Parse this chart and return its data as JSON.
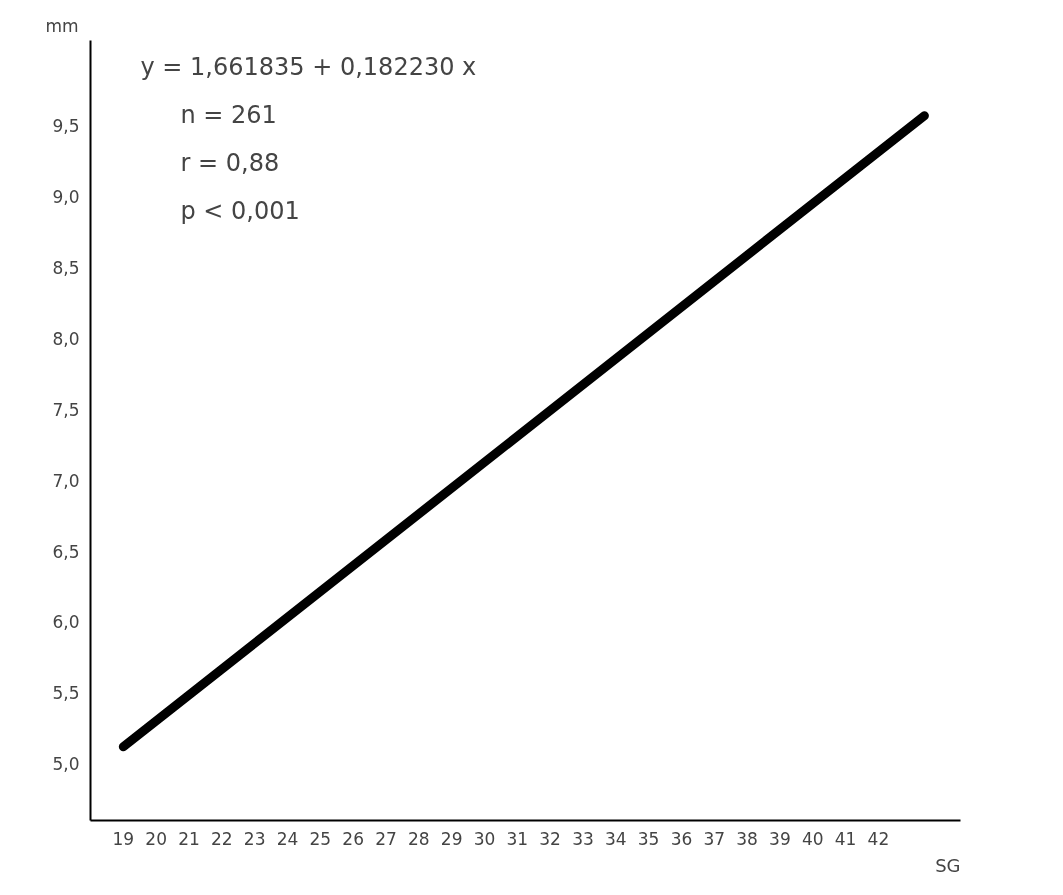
{
  "chart_data": {
    "type": "line",
    "xlabel": "SG",
    "ylabel": "mm",
    "x": [
      19,
      43.4
    ],
    "series": [
      {
        "color": "#000000",
        "values": [
          5.12,
          9.57
        ]
      }
    ],
    "xlim": [
      18,
      44.5
    ],
    "ylim": [
      4.6,
      10.1
    ],
    "xticks": [
      19,
      20,
      21,
      22,
      23,
      24,
      25,
      26,
      27,
      28,
      29,
      30,
      31,
      32,
      33,
      34,
      35,
      36,
      37,
      38,
      39,
      40,
      41,
      42
    ],
    "yticks": [
      {
        "value": 5,
        "label": "5,0"
      },
      {
        "value": 5.5,
        "label": "5,5"
      },
      {
        "value": 6,
        "label": "6,0"
      },
      {
        "value": 6.5,
        "label": "6,5"
      },
      {
        "value": 7,
        "label": "7,0"
      },
      {
        "value": 7.5,
        "label": "7,5"
      },
      {
        "value": 8,
        "label": "8,0"
      },
      {
        "value": 8.5,
        "label": "8,5"
      },
      {
        "value": 9,
        "label": "9,0"
      },
      {
        "value": 9.5,
        "label": "9,5"
      }
    ],
    "annotations": [
      "y = 1,661835 + 0,182230 x",
      "n = 261",
      "r = 0,88",
      "p < 0,001"
    ],
    "grid": false,
    "marker": "none",
    "line_style": "solid"
  }
}
